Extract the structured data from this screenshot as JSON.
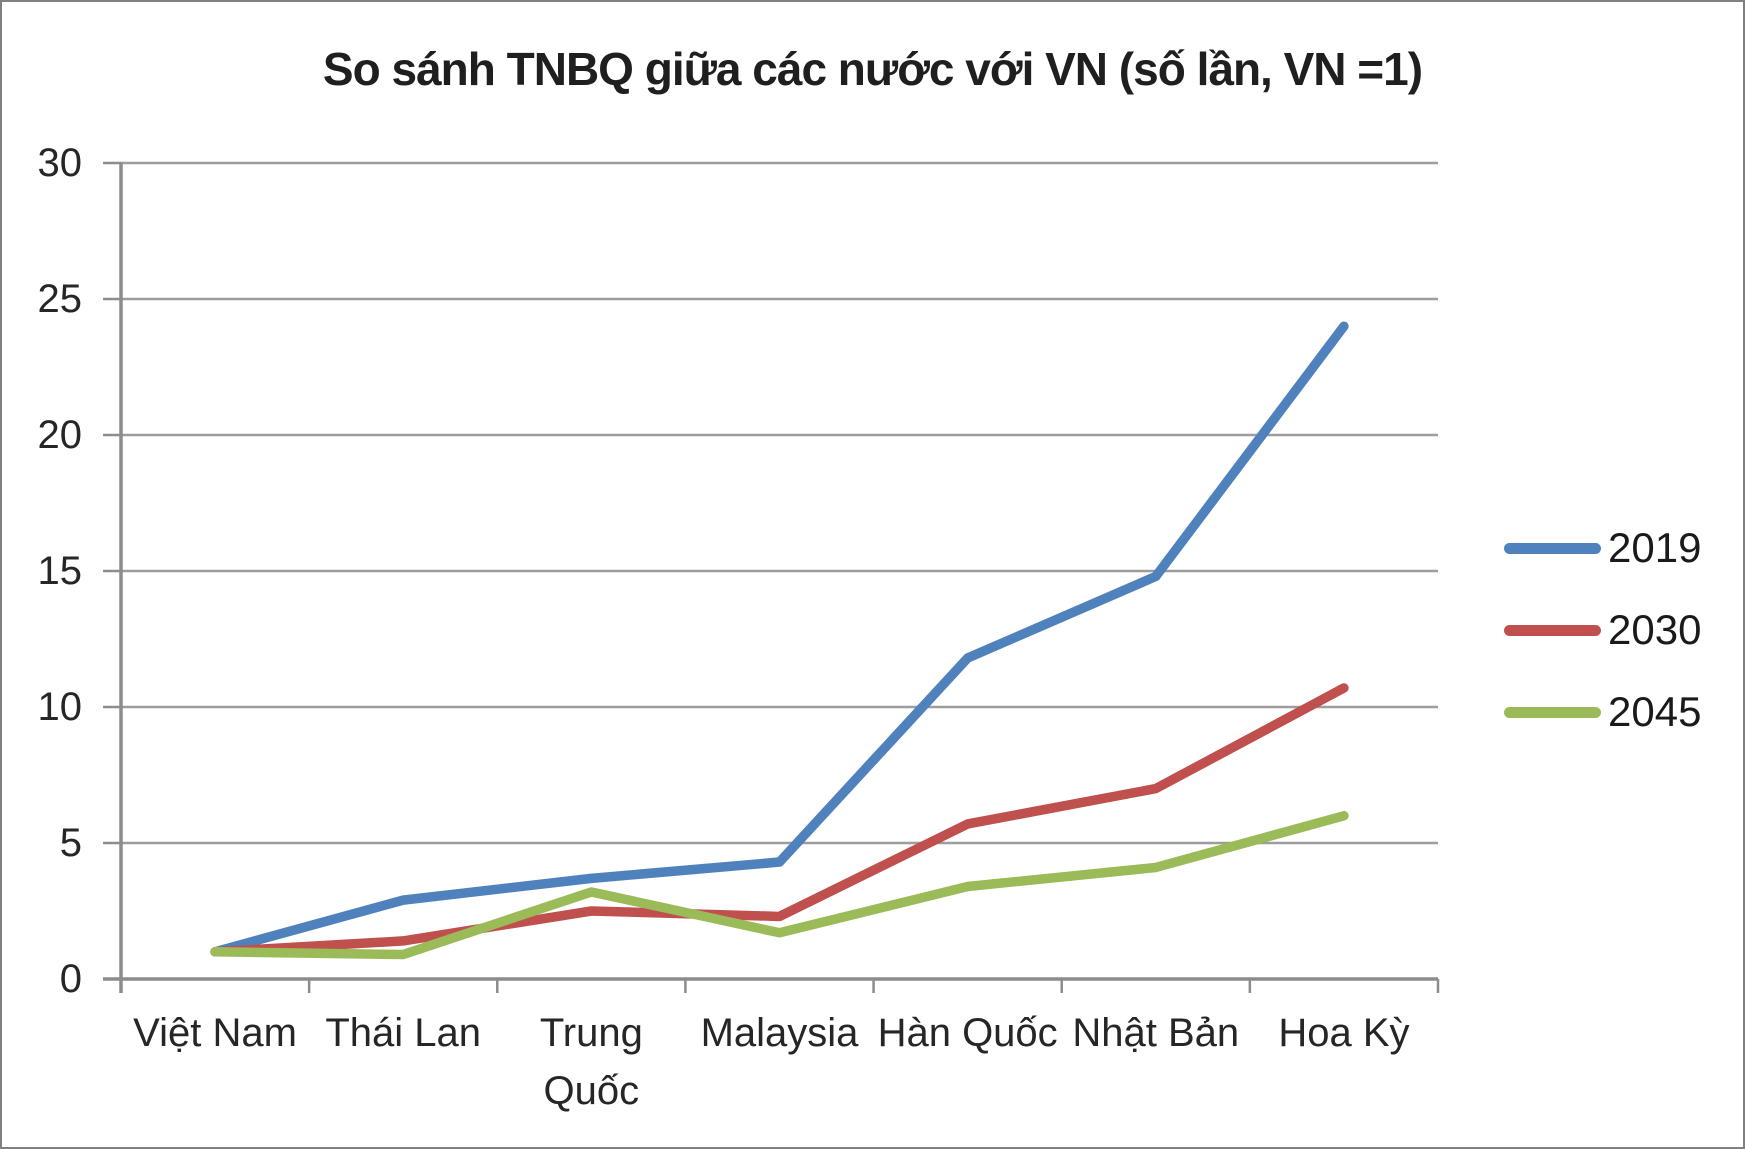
{
  "chart_data": {
    "type": "line",
    "title": "So sánh TNBQ giữa các nước với VN (số lần, VN =1)",
    "categories": [
      "Việt Nam",
      "Thái Lan",
      "Trung Quốc",
      "Malaysia",
      "Hàn Quốc",
      "Nhật Bản",
      "Hoa Kỳ"
    ],
    "x_label_lines": [
      [
        "Việt Nam"
      ],
      [
        "Thái Lan"
      ],
      [
        "Trung",
        "Quốc"
      ],
      [
        "Malaysia"
      ],
      [
        "Hàn Quốc"
      ],
      [
        "Nhật Bản"
      ],
      [
        "Hoa Kỳ"
      ]
    ],
    "series": [
      {
        "name": "2019",
        "color": "#4F81BD",
        "values": [
          1,
          2.9,
          3.7,
          4.3,
          11.8,
          14.8,
          24
        ]
      },
      {
        "name": "2030",
        "color": "#C0504D",
        "values": [
          1,
          1.4,
          2.5,
          2.3,
          5.7,
          7.0,
          10.7
        ]
      },
      {
        "name": "2045",
        "color": "#9BBB59",
        "values": [
          1,
          0.9,
          3.2,
          1.7,
          3.4,
          4.1,
          6.0
        ]
      }
    ],
    "ylim": [
      0,
      30
    ],
    "yticks": [
      0,
      5,
      10,
      15,
      20,
      25,
      30
    ],
    "grid": true,
    "legend_position": "right",
    "xlabel": "",
    "ylabel": "",
    "colors": {
      "gridline": "#9D9D9D",
      "axis": "#8C8C8C",
      "text": "#262626",
      "background": "#FFFFFF",
      "border": "#808080"
    }
  }
}
